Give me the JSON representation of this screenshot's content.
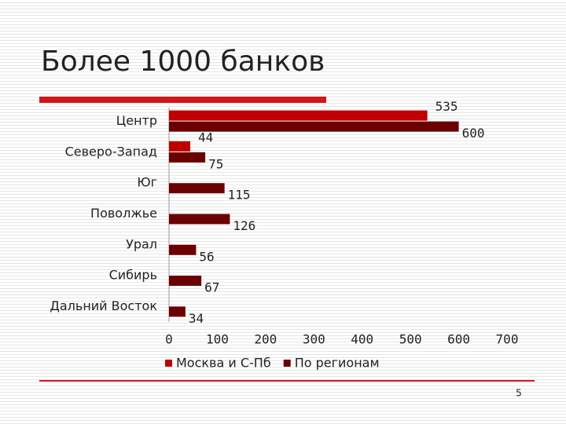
{
  "chart_data": {
    "type": "bar",
    "orientation": "horizontal",
    "title": "Более 1000 банков",
    "categories": [
      "Центр",
      "Северо-Запад",
      "Юг",
      "Поволжье",
      "Урал",
      "Сибирь",
      "Дальний Восток"
    ],
    "series": [
      {
        "name": "Москва и С-Пб",
        "color": "#c00000",
        "values": [
          535,
          44,
          null,
          null,
          null,
          null,
          null
        ]
      },
      {
        "name": "По регионам",
        "color": "#6b0000",
        "values": [
          600,
          75,
          115,
          126,
          56,
          67,
          34
        ]
      }
    ],
    "xlim": [
      0,
      700
    ],
    "xticks": [
      0,
      100,
      200,
      300,
      400,
      500,
      600,
      700
    ],
    "legend": "bottom"
  },
  "page_number": "5"
}
